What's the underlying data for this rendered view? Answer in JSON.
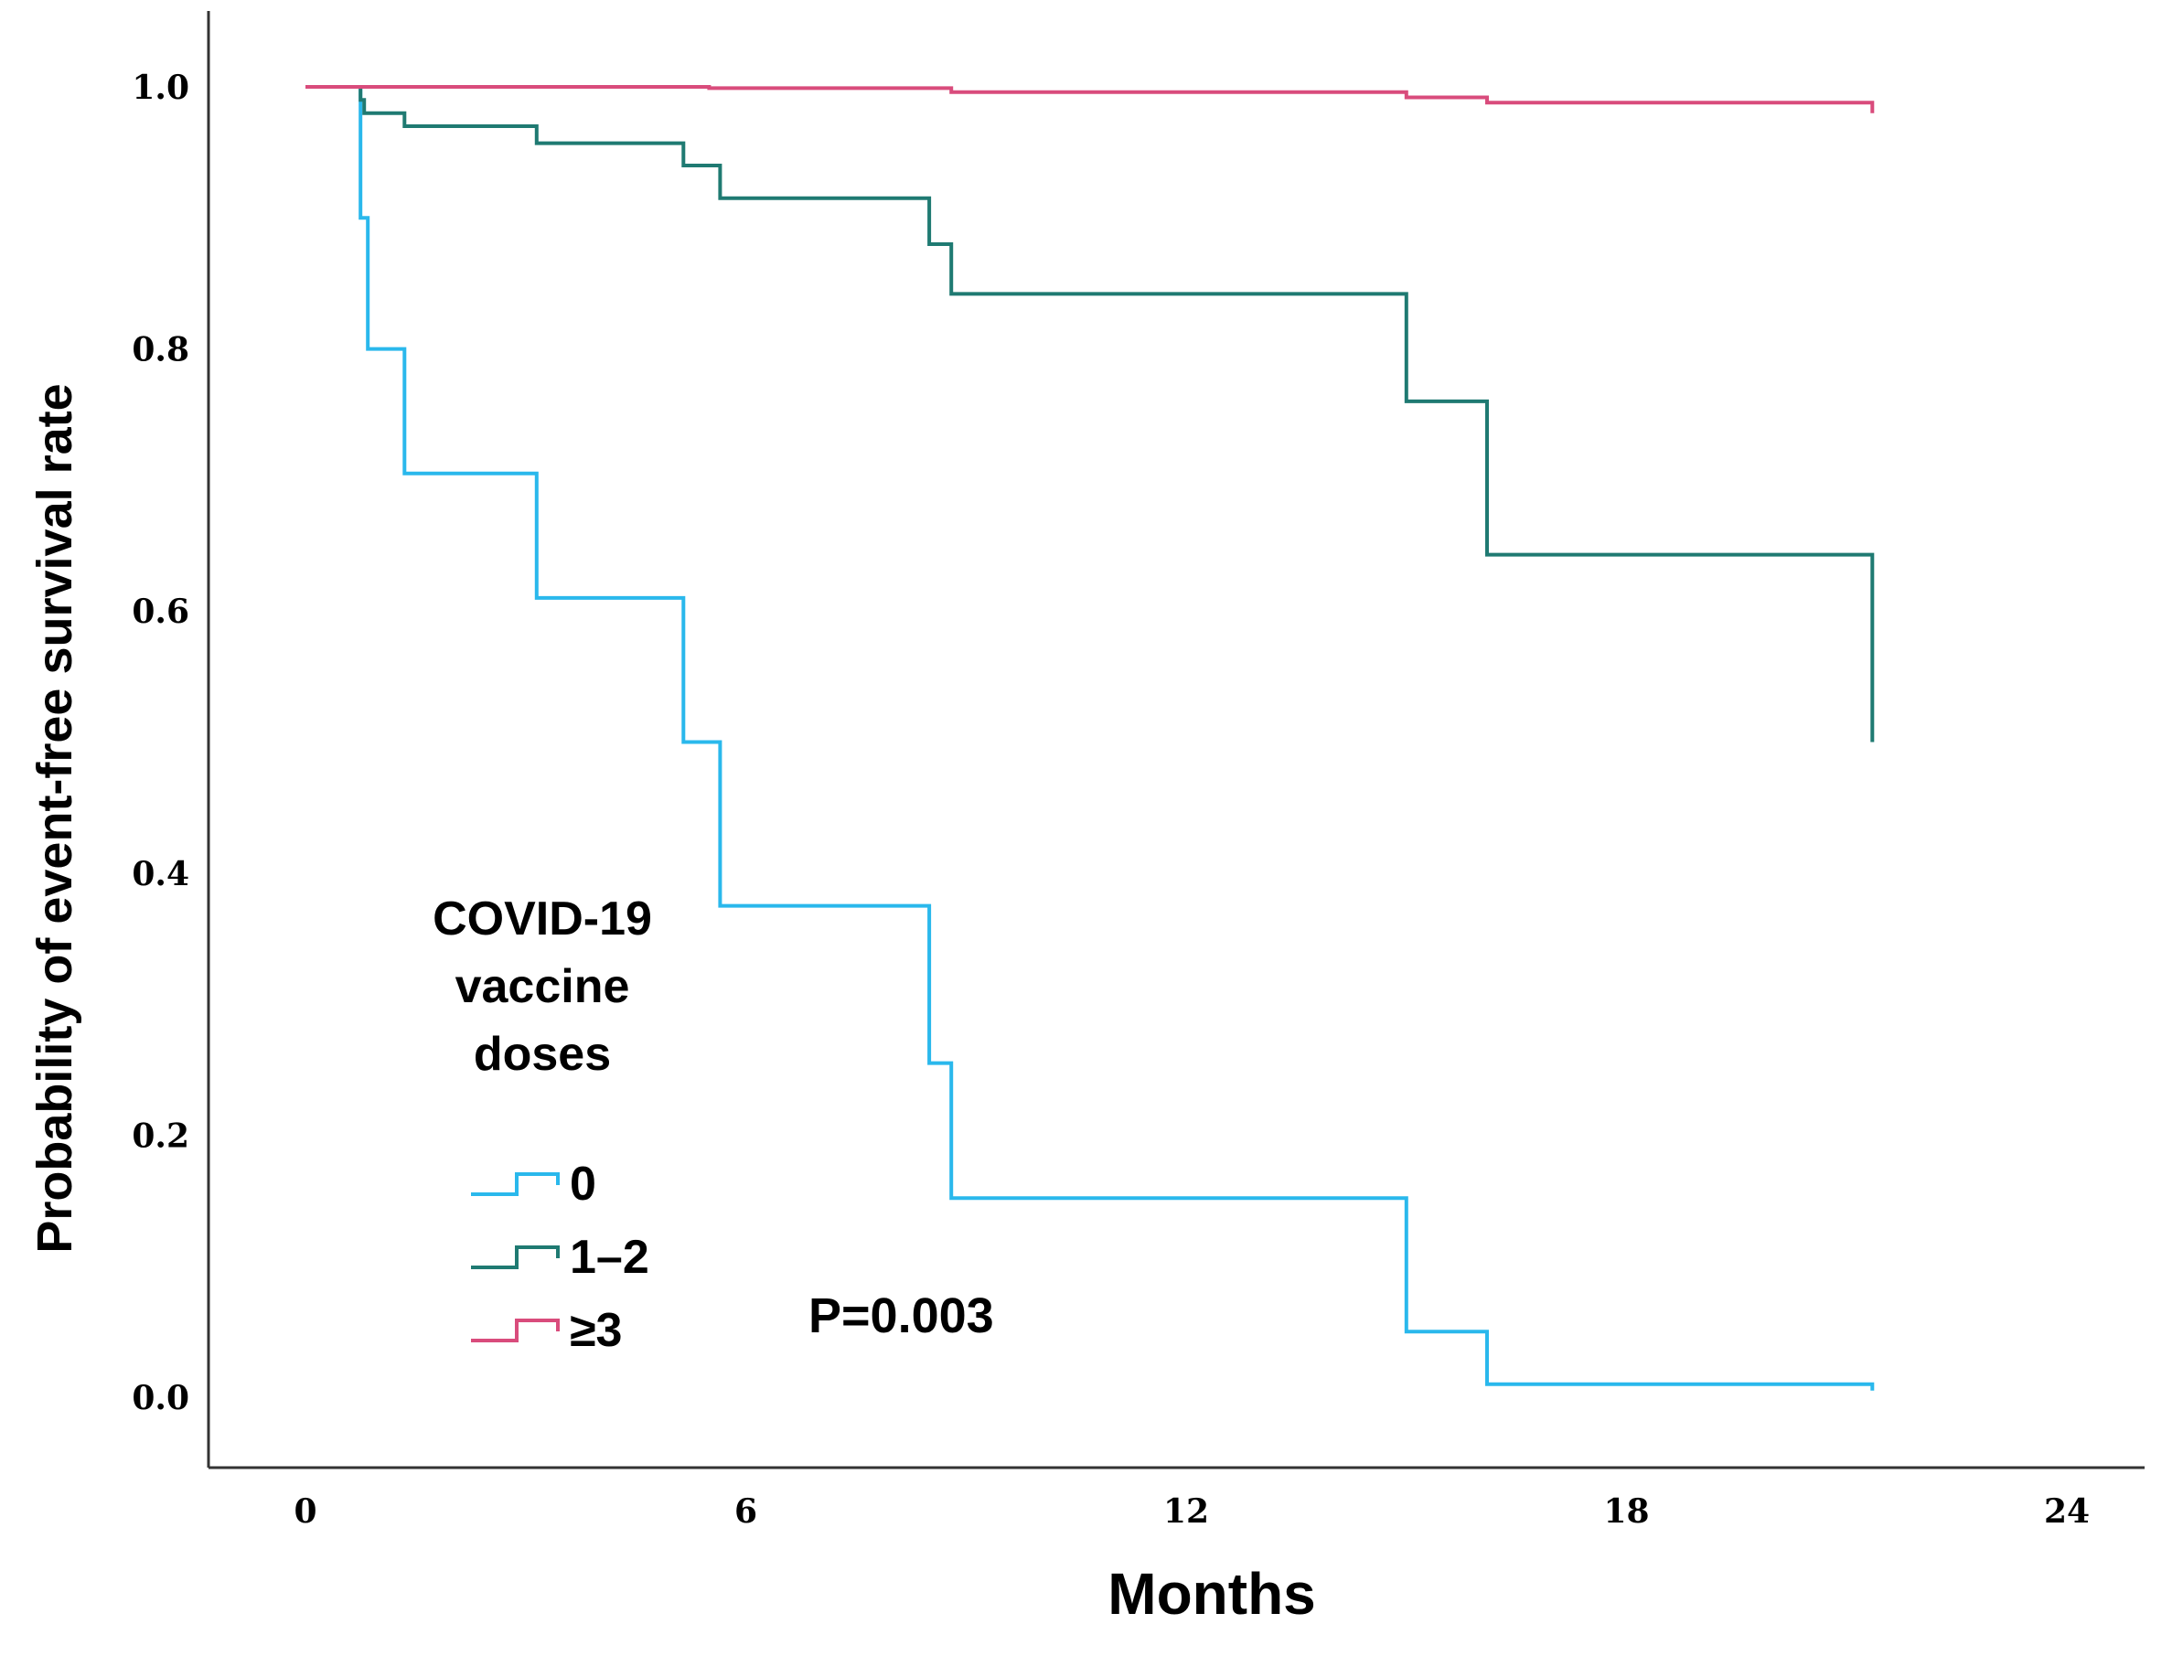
{
  "chart_data": {
    "type": "line",
    "subtype": "kaplan-meier-step",
    "title": "",
    "xlabel": "Months",
    "ylabel": "Probability of event-free survival rate",
    "xlim": [
      -2,
      24
    ],
    "ylim": [
      -0.05,
      1.05
    ],
    "x_ticks": [
      0,
      6,
      12,
      18,
      24
    ],
    "x_tick_labels": [
      "0",
      "6",
      "12",
      "18",
      "24"
    ],
    "y_ticks": [
      0.0,
      0.2,
      0.4,
      0.6,
      0.8,
      1.0
    ],
    "y_tick_labels": [
      "0.0",
      "0.2",
      "0.4",
      "0.6",
      "0.8",
      "1.0"
    ],
    "grid": false,
    "legend": {
      "title_lines": [
        "COVID-19",
        "vaccine",
        "doses"
      ],
      "placement": "lower-left"
    },
    "annotation": "P=0.003",
    "series": [
      {
        "name": "0",
        "color": "#2ab8ec",
        "steps": [
          [
            0,
            1.0
          ],
          [
            0.75,
            1.0
          ],
          [
            0.75,
            0.9
          ],
          [
            0.85,
            0.9
          ],
          [
            0.85,
            0.8
          ],
          [
            1.35,
            0.8
          ],
          [
            1.35,
            0.705
          ],
          [
            3.15,
            0.705
          ],
          [
            3.15,
            0.61
          ],
          [
            5.15,
            0.61
          ],
          [
            5.15,
            0.5
          ],
          [
            5.65,
            0.5
          ],
          [
            5.65,
            0.375
          ],
          [
            8.5,
            0.375
          ],
          [
            8.5,
            0.255
          ],
          [
            8.8,
            0.255
          ],
          [
            8.8,
            0.152
          ],
          [
            15.0,
            0.152
          ],
          [
            15.0,
            0.05
          ],
          [
            16.1,
            0.05
          ],
          [
            16.1,
            0.01
          ],
          [
            21.35,
            0.01
          ],
          [
            21.35,
            0.005
          ]
        ]
      },
      {
        "name": "1–2",
        "color": "#1f7a72",
        "steps": [
          [
            0,
            1.0
          ],
          [
            0.75,
            1.0
          ],
          [
            0.75,
            0.99
          ],
          [
            0.8,
            0.99
          ],
          [
            0.8,
            0.98
          ],
          [
            1.35,
            0.98
          ],
          [
            1.35,
            0.97
          ],
          [
            3.15,
            0.97
          ],
          [
            3.15,
            0.957
          ],
          [
            5.15,
            0.957
          ],
          [
            5.15,
            0.94
          ],
          [
            5.65,
            0.94
          ],
          [
            5.65,
            0.915
          ],
          [
            8.5,
            0.915
          ],
          [
            8.5,
            0.88
          ],
          [
            8.8,
            0.88
          ],
          [
            8.8,
            0.842
          ],
          [
            15.0,
            0.842
          ],
          [
            15.0,
            0.76
          ],
          [
            16.1,
            0.76
          ],
          [
            16.1,
            0.643
          ],
          [
            21.35,
            0.643
          ],
          [
            21.35,
            0.5
          ]
        ]
      },
      {
        "name": "≥3",
        "color": "#d94c7c",
        "steps": [
          [
            0,
            1.0
          ],
          [
            5.5,
            1.0
          ],
          [
            5.5,
            0.999
          ],
          [
            8.8,
            0.999
          ],
          [
            8.8,
            0.996
          ],
          [
            15.0,
            0.996
          ],
          [
            15.0,
            0.992
          ],
          [
            16.1,
            0.992
          ],
          [
            16.1,
            0.988
          ],
          [
            21.35,
            0.988
          ],
          [
            21.35,
            0.98
          ]
        ]
      }
    ]
  }
}
